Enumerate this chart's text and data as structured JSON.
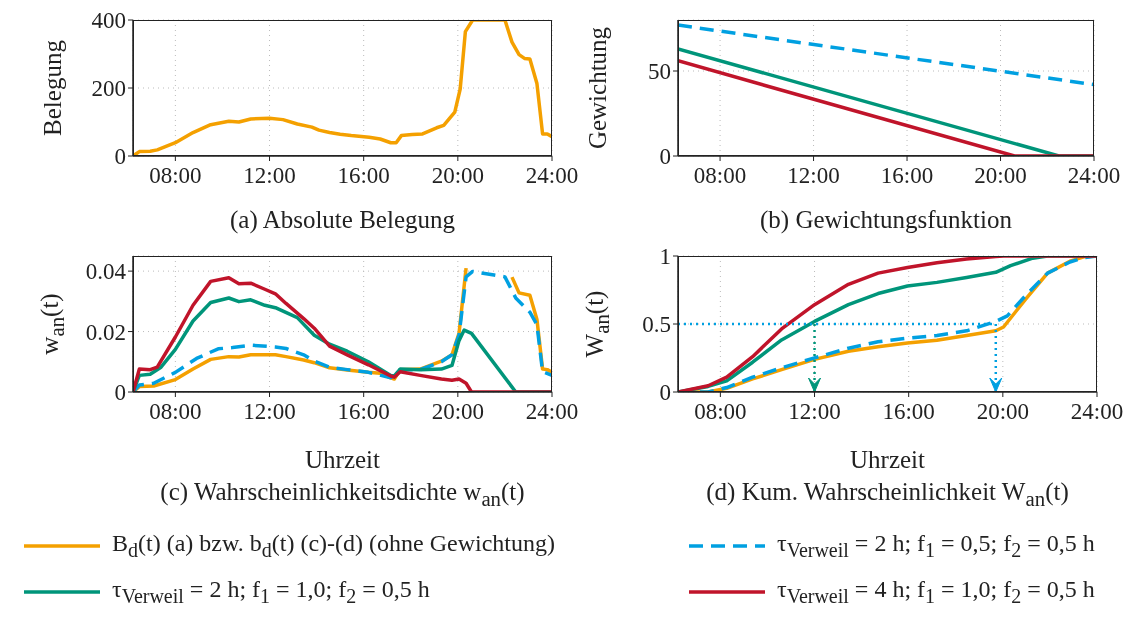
{
  "chart_data": [
    {
      "type": "line",
      "title": "(a) Absolute Belegung",
      "ylabel": "Belegung",
      "xlim": [
        6.2,
        24
      ],
      "xticks": [
        {
          "value": 8,
          "label": "08:00"
        },
        {
          "value": 12,
          "label": "12:00"
        },
        {
          "value": 16,
          "label": "16:00"
        },
        {
          "value": 20,
          "label": "20:00"
        },
        {
          "value": 24,
          "label": "24:00"
        }
      ],
      "ylim": [
        0,
        400
      ],
      "yticks": [
        0,
        200,
        400
      ],
      "grid": true,
      "series": [
        {
          "color": "#f4a000",
          "x": [
            6.2,
            6.47,
            6.93,
            7.23,
            8.0,
            8.75,
            9.5,
            10.27,
            10.7,
            11.2,
            12,
            12.57,
            13.18,
            13.8,
            14.1,
            14.55,
            15.0,
            15.47,
            16.23,
            16.7,
            17.15,
            17.38,
            17.6,
            18.06,
            18.5,
            19.1,
            19.4,
            19.87,
            20.1,
            20.32,
            20.63,
            22.0,
            22.3,
            22.6,
            22.83,
            23.06,
            23.36,
            23.6,
            23.8,
            24
          ],
          "values": [
            0,
            13,
            14,
            18,
            39,
            69,
            92,
            102,
            100,
            109,
            111,
            107,
            94,
            85,
            76,
            69,
            64,
            60,
            55,
            50,
            39,
            39,
            60,
            63,
            65,
            83,
            90,
            129,
            197,
            366,
            400,
            400,
            335,
            298,
            287,
            285,
            213,
            65,
            65,
            57
          ]
        }
      ]
    },
    {
      "type": "line",
      "title": "(b) Gewichtungsfunktion",
      "ylabel": "Gewichtung",
      "xlim": [
        6.2,
        24
      ],
      "xticks": [
        {
          "value": 8,
          "label": "08:00"
        },
        {
          "value": 12,
          "label": "12:00"
        },
        {
          "value": 16,
          "label": "16:00"
        },
        {
          "value": 20,
          "label": "20:00"
        },
        {
          "value": 24,
          "label": "24:00"
        }
      ],
      "ylim": [
        0,
        80
      ],
      "yticks": [
        0,
        50
      ],
      "grid": true,
      "series": [
        {
          "color": "#00a0e1",
          "line_style": "dashed",
          "x": [
            6.2,
            24
          ],
          "values": [
            77,
            42
          ]
        },
        {
          "color": "#00957a",
          "x": [
            6.2,
            22.5,
            24
          ],
          "values": [
            63,
            0,
            0
          ]
        },
        {
          "color": "#c0142a",
          "x": [
            6.2,
            20.6,
            24
          ],
          "values": [
            56,
            0,
            0
          ]
        }
      ]
    },
    {
      "type": "line",
      "title": "(c) Wahrscheinlichkeitsdichte w$_{an}$(t)",
      "xlabel": "Uhrzeit",
      "ylabel": "w$_{an}$(t)",
      "xlim": [
        6.2,
        24
      ],
      "xticks": [
        {
          "value": 8,
          "label": "08:00"
        },
        {
          "value": 12,
          "label": "12:00"
        },
        {
          "value": 16,
          "label": "16:00"
        },
        {
          "value": 20,
          "label": "20:00"
        },
        {
          "value": 24,
          "label": "24:00"
        }
      ],
      "ylim": [
        0,
        0.045
      ],
      "yticks": [
        0,
        0.02,
        0.04
      ],
      "grid": true,
      "legend": "bottom",
      "series": [
        {
          "name": "B$_{d}$(t) (a) bzw. b$_{d}$(t) (c)-(d) (ohne Gewichtung)",
          "color": "#f4a000",
          "x": [
            6.2,
            6.47,
            7.08,
            8.0,
            8.75,
            9.5,
            10.27,
            10.7,
            11.2,
            12.25,
            12.7,
            13.45,
            13.9,
            14.55,
            15.3,
            16.2,
            16.7,
            17.15,
            17.3,
            17.55,
            18.4,
            19.3,
            19.75,
            20.05,
            20.35,
            20.63,
            22.0,
            22.3,
            22.6,
            23.06,
            23.36,
            23.6,
            23.8,
            24
          ],
          "values": [
            0,
            0.0018,
            0.002,
            0.0041,
            0.0076,
            0.0108,
            0.0117,
            0.0116,
            0.0123,
            0.0123,
            0.0117,
            0.0106,
            0.0097,
            0.008,
            0.0073,
            0.0065,
            0.0062,
            0.0047,
            0.0043,
            0.0074,
            0.0076,
            0.0102,
            0.0123,
            0.0194,
            0.041,
            null,
            null,
            0.038,
            0.0328,
            0.032,
            0.024,
            0.0076,
            0.0074,
            0.0065
          ]
        },
        {
          "name": "τ$_{Verweil}$ = 2 h; f$_{1}$ = 0,5; f$_{2}$ = 0,5 h",
          "color": "#00a0e1",
          "line_style": "dashed",
          "x": [
            6.2,
            6.47,
            7.08,
            8.0,
            8.9,
            9.82,
            10.43,
            11.2,
            12.25,
            12.7,
            13.45,
            13.9,
            14.55,
            15.3,
            16.2,
            17.15,
            17.55,
            18.4,
            19.3,
            19.75,
            20.05,
            20.35,
            20.63,
            21.54,
            22.0,
            22.46,
            23.06,
            23.36,
            23.6,
            24
          ],
          "values": [
            0,
            0.0023,
            0.0029,
            0.0065,
            0.0111,
            0.0143,
            0.0147,
            0.0155,
            0.0149,
            0.0144,
            0.0123,
            0.0102,
            0.0082,
            0.0074,
            0.0065,
            0.0047,
            0.0074,
            0.0074,
            0.01,
            0.0123,
            0.0188,
            0.0381,
            0.0399,
            0.0387,
            0.0381,
            0.0311,
            0.0264,
            0.0223,
            0.0067,
            0.0055
          ]
        },
        {
          "name": "τ$_{Verweil}$ = 2 h; f$_{1}$ = 1,0; f$_{2}$ = 0,5 h",
          "color": "#00957a",
          "x": [
            6.2,
            6.47,
            6.93,
            7.39,
            8.0,
            8.75,
            9.5,
            10.27,
            10.7,
            11.2,
            11.8,
            12.25,
            13.18,
            13.9,
            14.55,
            15.3,
            16.2,
            17.15,
            17.3,
            17.55,
            18.4,
            19.3,
            19.75,
            20.05,
            20.27,
            20.58,
            22.46,
            24
          ],
          "values": [
            0,
            0.0055,
            0.0059,
            0.0082,
            0.0141,
            0.0235,
            0.0296,
            0.0311,
            0.0299,
            0.0305,
            0.0287,
            0.0279,
            0.0246,
            0.0188,
            0.0158,
            0.0135,
            0.01,
            0.0055,
            0.0053,
            0.0076,
            0.0074,
            0.0076,
            0.0088,
            0.017,
            0.0205,
            0.0194,
            0,
            0
          ]
        },
        {
          "name": "τ$_{Verweil}$ = 4 h; f$_{1}$ = 1,0; f$_{2}$ = 0,5 h",
          "color": "#c0142a",
          "x": [
            6.2,
            6.47,
            6.93,
            7.23,
            8.0,
            8.75,
            9.5,
            10.27,
            10.7,
            11.2,
            11.8,
            12.25,
            12.7,
            13.45,
            13.9,
            14.55,
            15.3,
            16.2,
            17.15,
            17.3,
            17.55,
            18.4,
            19.3,
            19.75,
            20.05,
            20.35,
            20.58,
            24
          ],
          "values": [
            0,
            0.0076,
            0.0074,
            0.0082,
            0.0182,
            0.0287,
            0.0366,
            0.0378,
            0.0358,
            0.036,
            0.034,
            0.0325,
            0.0293,
            0.0243,
            0.0211,
            0.0152,
            0.0123,
            0.009,
            0.0053,
            0.0049,
            0.0067,
            0.0055,
            0.0043,
            0.0039,
            0.0043,
            0.0029,
            0,
            0
          ]
        }
      ]
    },
    {
      "type": "line",
      "title": "(d) Kum. Wahrscheinlichkeit W$_{an}$(t)",
      "xlabel": "Uhrzeit",
      "ylabel": "W$_{an}$(t)",
      "xlim": [
        6.2,
        24
      ],
      "xticks": [
        {
          "value": 8,
          "label": "08:00"
        },
        {
          "value": 12,
          "label": "12:00"
        },
        {
          "value": 16,
          "label": "16:00"
        },
        {
          "value": 20,
          "label": "20:00"
        },
        {
          "value": 24,
          "label": "24:00"
        }
      ],
      "ylim": [
        0,
        1
      ],
      "yticks": [
        0,
        0.5,
        1
      ],
      "grid": true,
      "ref_lines": [
        {
          "axis": "y",
          "value": 0.5,
          "color": "#00a0e1",
          "line_style": "dotted"
        },
        {
          "axis": "x",
          "value": 12,
          "color": "#00957a",
          "line_style": "dotted"
        },
        {
          "axis": "x",
          "value": 19.7,
          "color": "#00a0e1",
          "line_style": "dotted"
        }
      ],
      "series": [
        {
          "color": "#f4a000",
          "x": [
            6.2,
            7.48,
            8.27,
            9.37,
            10.6,
            12,
            13.44,
            14.7,
            15.95,
            17.2,
            18.46,
            19.7,
            20.03,
            20.97,
            21.9,
            22.85,
            23.48,
            24
          ],
          "values": [
            0,
            0,
            0.027,
            0.096,
            0.164,
            0.24,
            0.3,
            0.333,
            0.36,
            0.38,
            0.415,
            0.45,
            0.478,
            0.683,
            0.874,
            0.962,
            0.995,
            1
          ]
        },
        {
          "color": "#00a0e1",
          "line_style": "dashed",
          "x": [
            6.2,
            7.48,
            8.27,
            9.37,
            10.6,
            12,
            13.44,
            14.7,
            15.95,
            17.2,
            18.46,
            19.7,
            20.19,
            20.97,
            21.9,
            22.85,
            23.48,
            24
          ],
          "values": [
            0,
            0,
            0.033,
            0.109,
            0.178,
            0.251,
            0.322,
            0.369,
            0.396,
            0.415,
            0.45,
            0.519,
            0.56,
            0.71,
            0.874,
            0.956,
            0.989,
            1
          ]
        },
        {
          "color": "#00957a",
          "x": [
            6.2,
            7.48,
            8.27,
            9.37,
            10.6,
            12,
            13.44,
            14.7,
            15.95,
            17.2,
            18.46,
            19.7,
            20.33,
            21.27,
            21.9,
            24
          ],
          "values": [
            0,
            0.041,
            0.082,
            0.219,
            0.383,
            0.519,
            0.642,
            0.724,
            0.779,
            0.806,
            0.842,
            0.88,
            0.929,
            0.984,
            1,
            1
          ]
        },
        {
          "color": "#c0142a",
          "x": [
            6.2,
            7.48,
            8.27,
            9.37,
            10.6,
            12,
            13.44,
            14.7,
            15.95,
            17.2,
            18.46,
            19.7,
            20.03,
            24
          ],
          "values": [
            0,
            0.046,
            0.109,
            0.26,
            0.464,
            0.642,
            0.792,
            0.874,
            0.915,
            0.951,
            0.978,
            0.997,
            1,
            1
          ]
        }
      ]
    }
  ]
}
